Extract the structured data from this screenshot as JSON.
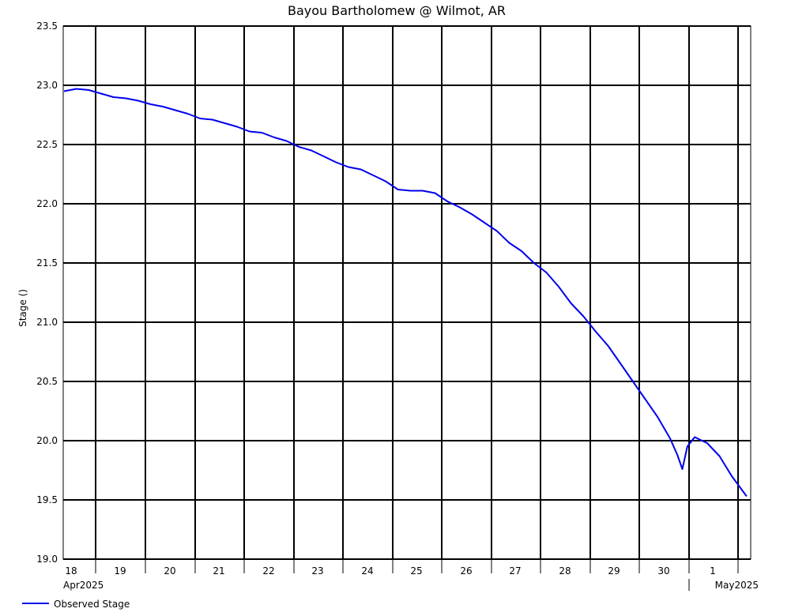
{
  "chart_data": {
    "type": "line",
    "title": "Bayou Bartholomew @ Wilmot, AR",
    "ylabel": "Stage ()",
    "ylim": [
      19.0,
      23.5
    ],
    "y_ticks": [
      "23.5",
      "23.0",
      "22.5",
      "22.0",
      "21.5",
      "21.0",
      "20.5",
      "20.0",
      "19.5",
      "19.0"
    ],
    "x_ticks": [
      "18",
      "19",
      "20",
      "21",
      "22",
      "23",
      "24",
      "25",
      "26",
      "27",
      "28",
      "29",
      "30",
      "1"
    ],
    "x_month_labels": [
      "Apr2025",
      "May2025"
    ],
    "grid": true,
    "legend_position": "bottom-left",
    "colors": {
      "series": "#0000ee",
      "grid": "#000000"
    },
    "series": [
      {
        "name": "Observed Stage",
        "x": [
          "18.0",
          "18.25",
          "18.5",
          "18.75",
          "19.0",
          "19.25",
          "19.5",
          "19.75",
          "20.0",
          "20.25",
          "20.5",
          "20.75",
          "21.0",
          "21.25",
          "21.5",
          "21.75",
          "22.0",
          "22.25",
          "22.5",
          "22.75",
          "23.0",
          "23.25",
          "23.5",
          "23.75",
          "24.0",
          "24.25",
          "24.5",
          "24.75",
          "25.0",
          "25.25",
          "25.5",
          "25.75",
          "26.0",
          "26.25",
          "26.5",
          "26.75",
          "27.0",
          "27.25",
          "27.5",
          "27.75",
          "28.0",
          "28.25",
          "28.5",
          "28.75",
          "29.0",
          "29.25",
          "29.5",
          "29.75",
          "30.0",
          "30.25",
          "30.4",
          "30.5",
          "30.6",
          "30.75",
          "31.0",
          "31.25",
          "31.5",
          "31.8"
        ],
        "values": [
          22.95,
          22.97,
          22.96,
          22.93,
          22.9,
          22.89,
          22.87,
          22.84,
          22.82,
          22.79,
          22.76,
          22.72,
          22.71,
          22.68,
          22.65,
          22.61,
          22.6,
          22.56,
          22.53,
          22.48,
          22.45,
          22.4,
          22.35,
          22.31,
          22.29,
          22.24,
          22.19,
          22.12,
          22.11,
          22.11,
          22.09,
          22.02,
          21.97,
          21.91,
          21.84,
          21.77,
          21.67,
          21.6,
          21.5,
          21.42,
          21.3,
          21.16,
          21.05,
          20.92,
          20.8,
          20.65,
          20.5,
          20.35,
          20.2,
          20.02,
          19.88,
          19.76,
          19.95,
          20.03,
          19.98,
          19.87,
          19.7,
          19.53
        ]
      }
    ]
  }
}
